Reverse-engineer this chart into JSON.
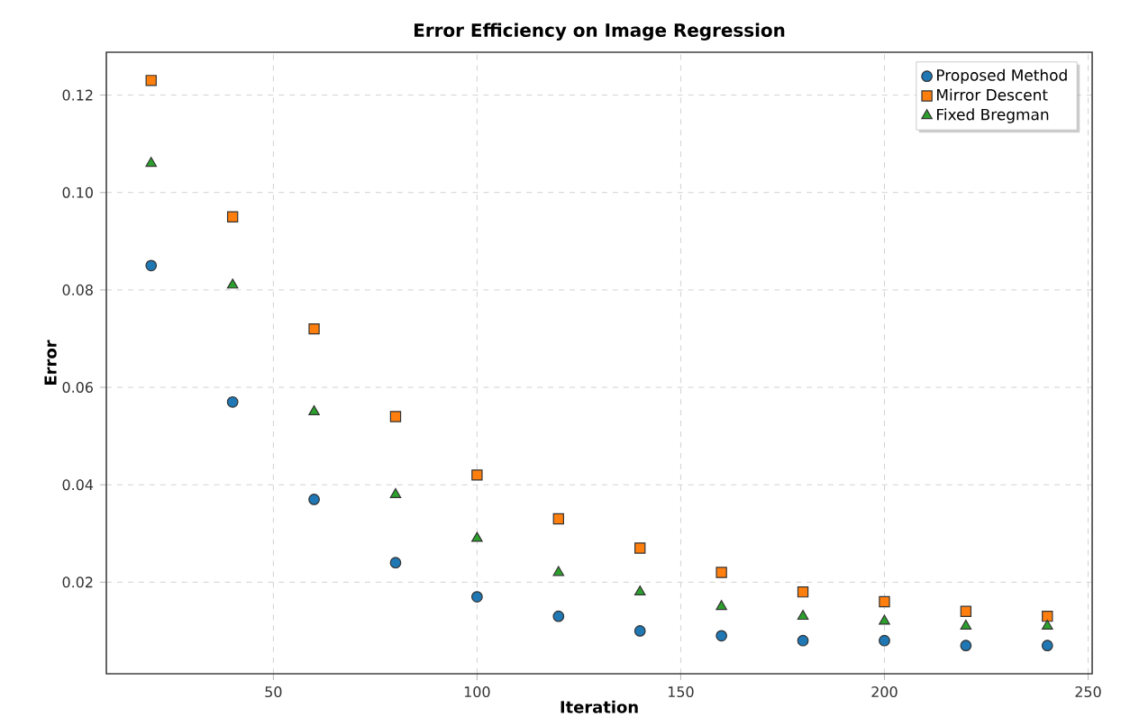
{
  "chart_data": {
    "type": "scatter",
    "title": "Error Efficiency on Image Regression",
    "xlabel": "Iteration",
    "ylabel": "Error",
    "x": [
      20,
      40,
      60,
      80,
      100,
      120,
      140,
      160,
      180,
      200,
      220,
      240
    ],
    "series": [
      {
        "name": "Proposed Method",
        "color": "#1f77b4",
        "marker": "circle",
        "values": [
          0.085,
          0.057,
          0.037,
          0.024,
          0.017,
          0.013,
          0.01,
          0.009,
          0.008,
          0.008,
          0.007,
          0.007
        ]
      },
      {
        "name": "Mirror Descent",
        "color": "#ff7f0e",
        "marker": "square",
        "values": [
          0.123,
          0.095,
          0.072,
          0.054,
          0.042,
          0.033,
          0.027,
          0.022,
          0.018,
          0.016,
          0.014,
          0.013
        ]
      },
      {
        "name": "Fixed Bregman",
        "color": "#2ca02c",
        "marker": "triangle",
        "values": [
          0.106,
          0.081,
          0.055,
          0.038,
          0.029,
          0.022,
          0.018,
          0.015,
          0.013,
          0.012,
          0.011,
          0.011
        ]
      }
    ],
    "xlim": [
      9,
      251
    ],
    "ylim": [
      0.0012,
      0.1288
    ],
    "xticks": [
      50,
      100,
      150,
      200,
      250
    ],
    "yticks": [
      0.02,
      0.04,
      0.06,
      0.08,
      {
        "value": 0.1,
        "label": "0.10"
      },
      0.12
    ],
    "grid": true,
    "legend": "top right"
  }
}
